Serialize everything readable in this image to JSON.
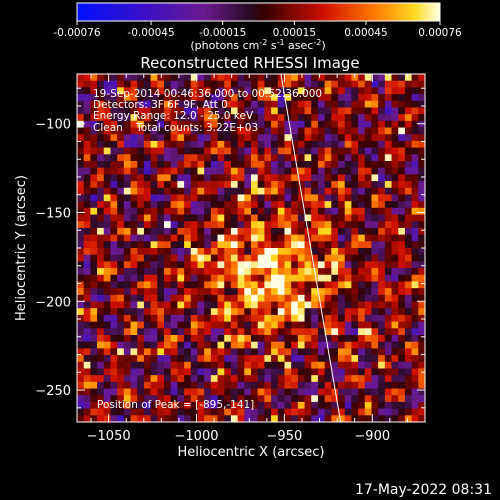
{
  "chart_data": {
    "type": "heatmap",
    "title": "Reconstructed RHESSI Image",
    "xlabel": "Heliocentric X (arcsec)",
    "ylabel": "Heliocentric Y (arcsec)",
    "xlim": [
      -1068,
      -870
    ],
    "ylim": [
      -268,
      -72
    ],
    "x_ticks": [
      -1050,
      -1000,
      -950,
      -900
    ],
    "y_ticks": [
      -100,
      -150,
      -200,
      -250
    ],
    "colorbar": {
      "min": -0.00076,
      "max": 0.00076,
      "tick_values": [
        -0.00076,
        -0.00045,
        -0.00015,
        0.00015,
        0.00045,
        0.00076
      ],
      "tick_labels": [
        "-0.00076",
        "-0.00045",
        "-0.00015",
        "0.00015",
        "0.00045",
        "0.00076"
      ],
      "units_prefix": "(photons cm",
      "units_exp1": "-2",
      "units_mid": " s",
      "units_exp2": "-1",
      "units_mid2": " asec",
      "units_exp3": "-2",
      "units_suffix": ")"
    },
    "peak": {
      "x": -895,
      "y": -141
    },
    "limb_line": {
      "x_at_ylim_top": -952,
      "x_at_ylim_bottom": -918
    }
  },
  "annotations": {
    "time_range": "19-Sep-2014 00:46:36.000 to 00:52:36.000",
    "detectors": "Detectors: 3F 6F 9F, Att 0",
    "energy_range": "Energy Range: 12.0 - 25.0 keV",
    "method_counts": "Clean    Total counts: 3.22E+03",
    "peak_position": "Position of Peak = [-895,-141]"
  },
  "footer_timestamp": "17-May-2022 08:31"
}
